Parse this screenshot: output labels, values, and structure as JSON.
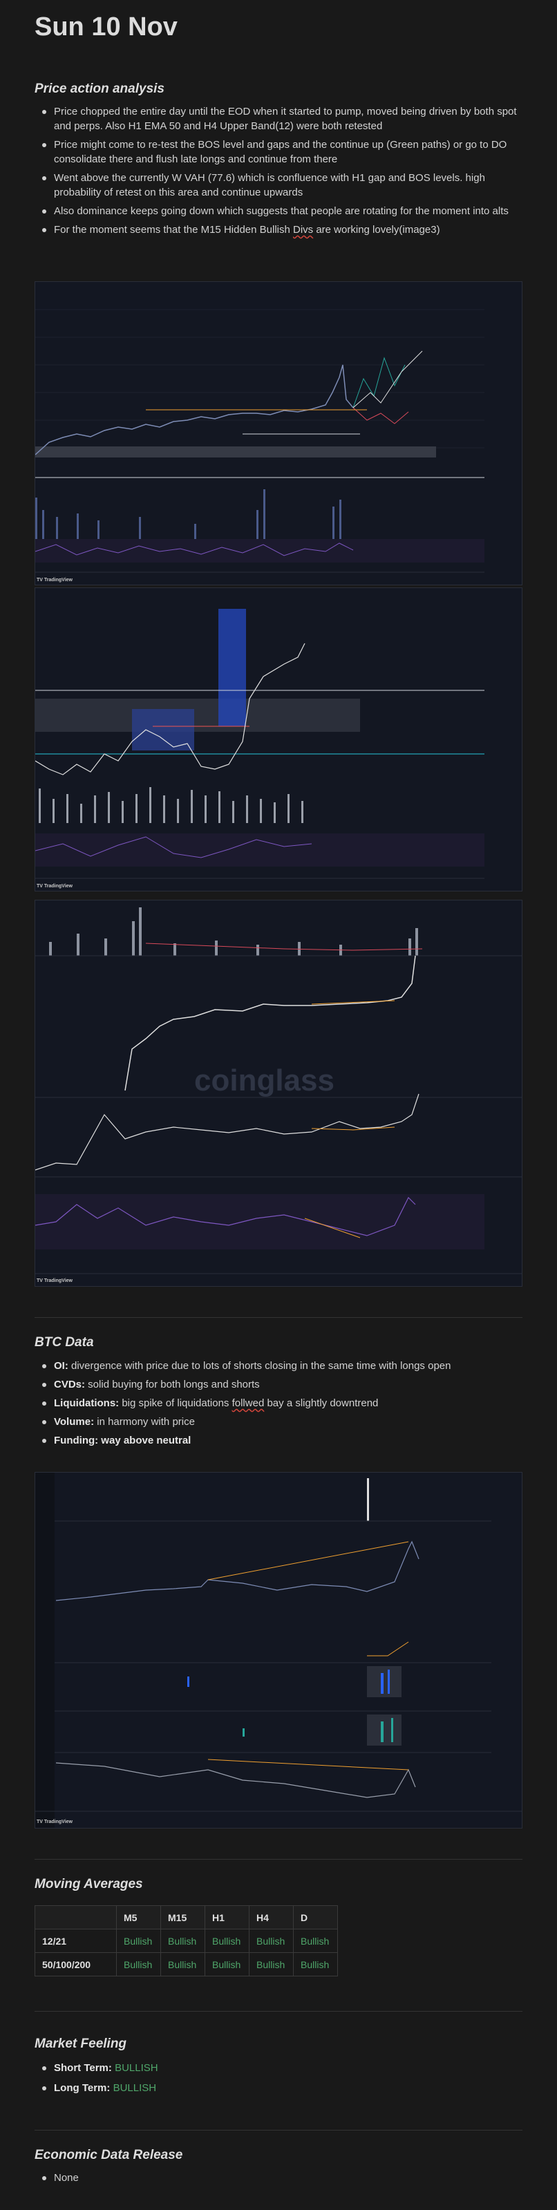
{
  "title": "Sun 10 Nov",
  "price_action": {
    "heading": "Price action analysis",
    "bullets": [
      "Price chopped the entire day until the EOD when it started to pump, moved being driven by both spot and perps. Also H1 EMA 50 and H4 Upper Band(12) were both retested",
      "Price might come to re-test the BOS level and gaps and the continue up (Green paths) or go to DO consolidate there and flush late longs and continue from there",
      " Went above the currently W VAH (77.6) which is confluence with H1 gap and BOS levels. high probability of retest on this area and continue upwards",
      "Also dominance keeps going down which suggests that people are rotating for the moment into alts"
    ],
    "last_bullet_pre": "For the moment seems that the M15 Hidden Bullish ",
    "last_bullet_sq": "Divs",
    "last_bullet_post": " are working lovely(image3)"
  },
  "charts": {
    "tv_logo": "TV TradingView",
    "watermark": "coinglass"
  },
  "btc_data": {
    "heading": "BTC Data",
    "items": [
      {
        "label": "OI:",
        "text": " divergence with price due to lots of shorts closing in the same time with longs open"
      },
      {
        "label": "CVDs:",
        "text": " solid buying for both longs and shorts"
      },
      {
        "label": "Liquidations:",
        "text_pre": " big spike of liquidations ",
        "text_sq": "follwed",
        "text_post": " bay a slightly downtrend"
      },
      {
        "label": "Volume:",
        "text": " in harmony with price"
      },
      {
        "label": "Funding: way above neutral",
        "text": ""
      }
    ]
  },
  "moving_averages": {
    "heading": "Moving Averages",
    "columns": [
      "",
      "M5",
      "M15",
      "H1",
      "H4",
      "D"
    ],
    "rows": [
      [
        "12/21",
        "Bullish",
        "Bullish",
        "Bullish",
        "Bullish",
        "Bullish"
      ],
      [
        "50/100/200",
        "Bullish",
        "Bullish",
        "Bullish",
        "Bullish",
        "Bullish"
      ]
    ]
  },
  "market_feeling": {
    "heading": "Market Feeling",
    "short_label": "Short Term:",
    "short_value": "BULLISH",
    "long_label": "Long Term:",
    "long_value": "BULLISH"
  },
  "economic": {
    "heading": "Economic Data Release",
    "items": [
      "None"
    ]
  }
}
